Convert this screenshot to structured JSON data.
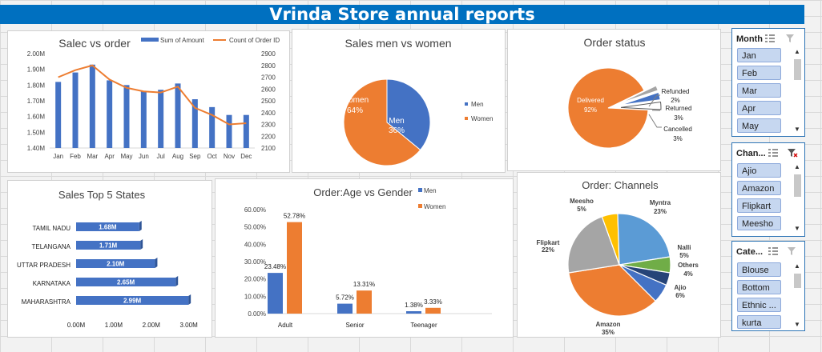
{
  "banner_title": "Vrinda Store annual reports",
  "charts": {
    "sales_order": {
      "title": "Salec vs order",
      "legend": [
        "Sum of Amount",
        "Count of Order ID"
      ],
      "left_ticks": [
        "2.00M",
        "1.90M",
        "1.80M",
        "1.70M",
        "1.60M",
        "1.50M",
        "1.40M"
      ],
      "right_ticks": [
        "2900",
        "2800",
        "2700",
        "2600",
        "2500",
        "2400",
        "2300",
        "2200",
        "2100"
      ],
      "colors": {
        "bar": "#4472c4",
        "line": "#ed7d31"
      }
    },
    "gender": {
      "title": "Sales men vs women",
      "legend": [
        "Men",
        "Women"
      ],
      "labels": {
        "men_name": "Men",
        "men_pct": "36%",
        "women_name": "Women",
        "women_pct": "64%"
      },
      "colors": {
        "men": "#4472c4",
        "women": "#ed7d31"
      }
    },
    "status": {
      "title": "Order status",
      "labels": {
        "delivered": "Delivered",
        "delivered_pct": "92%",
        "refunded": "Refunded",
        "refunded_pct": "2%",
        "returned": "Returned",
        "returned_pct": "3%",
        "cancelled": "Cancelled",
        "cancelled_pct": "3%"
      }
    },
    "states": {
      "title": "Sales Top 5 States",
      "x_ticks": [
        "0.00M",
        "1.00M",
        "2.00M",
        "3.00M"
      ]
    },
    "age": {
      "title": "Order:Age vs Gender",
      "legend": [
        "Men",
        "Women"
      ],
      "y_ticks": [
        "60.00%",
        "50.00%",
        "40.00%",
        "30.00%",
        "20.00%",
        "10.00%",
        "0.00%"
      ]
    },
    "channels": {
      "title": "Order: Channels"
    }
  },
  "chart_data": [
    {
      "type": "bar",
      "title": "Salec vs order",
      "categories": [
        "Jan",
        "Feb",
        "Mar",
        "Apr",
        "May",
        "Jun",
        "Jul",
        "Aug",
        "Sep",
        "Oct",
        "Nov",
        "Dec"
      ],
      "series": [
        {
          "name": "Sum of Amount",
          "values": [
            1.82,
            1.88,
            1.93,
            1.83,
            1.8,
            1.76,
            1.77,
            1.81,
            1.71,
            1.66,
            1.61,
            1.61
          ]
        },
        {
          "name": "Count of Order ID",
          "values": [
            2700,
            2760,
            2800,
            2680,
            2610,
            2580,
            2570,
            2620,
            2440,
            2380,
            2300,
            2310
          ]
        }
      ],
      "ylim": [
        1.4,
        2.0
      ],
      "y2lim": [
        2100,
        2900
      ]
    },
    {
      "type": "pie",
      "title": "Sales men vs women",
      "categories": [
        "Men",
        "Women"
      ],
      "values": [
        36,
        64
      ]
    },
    {
      "type": "pie",
      "title": "Order status",
      "categories": [
        "Delivered",
        "Refunded",
        "Returned",
        "Cancelled"
      ],
      "values": [
        92,
        2,
        3,
        3
      ]
    },
    {
      "type": "bar",
      "title": "Sales Top 5 States",
      "categories": [
        "TAMIL NADU",
        "TELANGANA",
        "UTTAR PRADESH",
        "KARNATAKA",
        "MAHARASHTRA"
      ],
      "values": [
        1.68,
        1.71,
        2.1,
        2.65,
        2.99
      ],
      "value_labels": [
        "1.68M",
        "1.71M",
        "2.10M",
        "2.65M",
        "2.99M"
      ],
      "xlim": [
        0,
        3.2
      ]
    },
    {
      "type": "bar",
      "title": "Order:Age vs Gender",
      "categories": [
        "Adult",
        "Senior",
        "Teenager"
      ],
      "series": [
        {
          "name": "Men",
          "values": [
            23.48,
            5.72,
            1.38
          ],
          "labels": [
            "23.48%",
            "5.72%",
            "1.38%"
          ]
        },
        {
          "name": "Women",
          "values": [
            52.78,
            13.31,
            3.33
          ],
          "labels": [
            "52.78%",
            "13.31%",
            "3.33%"
          ]
        }
      ],
      "ylim": [
        0,
        60
      ]
    },
    {
      "type": "pie",
      "title": "Order: Channels",
      "categories": [
        "Amazon",
        "Flipkart",
        "Meesho",
        "Myntra",
        "Nalli",
        "Others",
        "Ajio"
      ],
      "values": [
        35,
        22,
        5,
        23,
        5,
        4,
        6
      ],
      "colors": [
        "#ed7d31",
        "#a5a5a5",
        "#ffc000",
        "#5b9bd5",
        "#70ad47",
        "#264478",
        "#4472c4"
      ]
    }
  ],
  "slicers": [
    {
      "title": "Month",
      "items": [
        "Jan",
        "Feb",
        "Mar",
        "Apr",
        "May"
      ]
    },
    {
      "title": "Chan...",
      "items": [
        "Ajio",
        "Amazon",
        "Flipkart",
        "Meesho"
      ]
    },
    {
      "title": "Cate...",
      "items": [
        "Blouse",
        "Bottom",
        "Ethnic ...",
        "kurta"
      ]
    }
  ]
}
